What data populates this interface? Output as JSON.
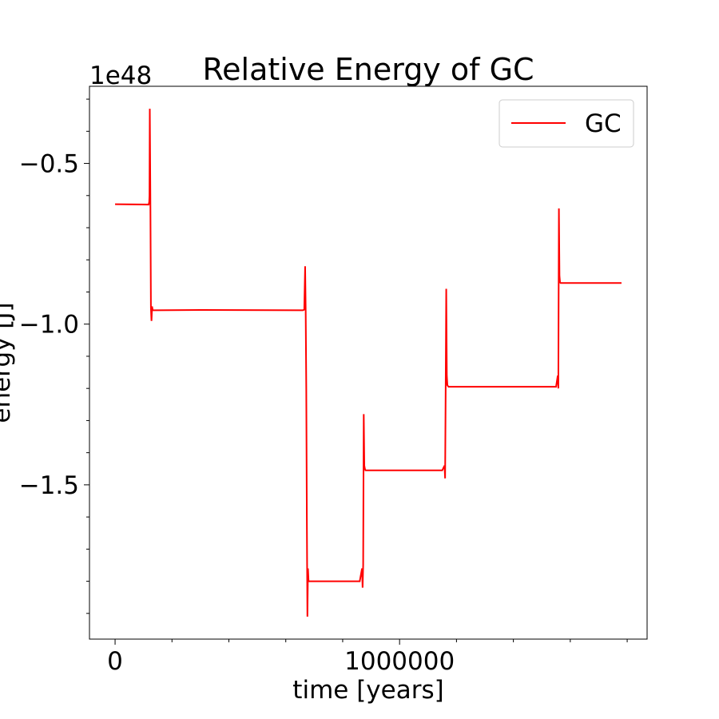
{
  "chart_data": {
    "type": "line",
    "title": "Relative Energy of GC",
    "xlabel": "time [years]",
    "ylabel": "energy [J]",
    "y_multiplier_label": "1e48",
    "xlim": [
      -90000,
      1870000
    ],
    "ylim": [
      -1.98,
      -0.26
    ],
    "x_ticks": [
      0,
      1000000
    ],
    "x_tick_labels": [
      "0",
      "1000000"
    ],
    "x_minor_ticks": [
      200000,
      400000,
      600000,
      800000,
      1200000,
      1400000,
      1600000,
      1800000
    ],
    "y_ticks": [
      -0.5,
      -1.0,
      -1.5
    ],
    "y_tick_labels": [
      "−0.5",
      "−1.0",
      "−1.5"
    ],
    "y_minor_ticks": [
      -0.3,
      -0.4,
      -0.6,
      -0.7,
      -0.8,
      -0.9,
      -1.1,
      -1.2,
      -1.3,
      -1.4,
      -1.6,
      -1.7,
      -1.8,
      -1.9
    ],
    "legend_position": "top-right",
    "grid": false,
    "series": [
      {
        "name": "GC",
        "color": "#ff0000",
        "x": [
          0,
          118000,
          120000,
          121000,
          122000,
          124000,
          126000,
          128000,
          130000,
          132000,
          133000,
          135000,
          140000,
          300000,
          660000,
          665000,
          668000,
          670000,
          672000,
          674000,
          676000,
          678000,
          680000,
          682000,
          684000,
          688000,
          700000,
          860000,
          868000,
          870000,
          872000,
          874000,
          876000,
          878000,
          880000,
          900000,
          1150000,
          1158000,
          1160000,
          1162000,
          1164000,
          1166000,
          1168000,
          1172000,
          1180000,
          1400000,
          1550000,
          1556000,
          1558000,
          1560000,
          1562000,
          1564000,
          1566000,
          1570000,
          1580000,
          1780000
        ],
        "y": [
          -0.627,
          -0.628,
          -0.62,
          -0.6,
          -0.33,
          -0.6,
          -0.95,
          -0.99,
          -0.945,
          -0.955,
          -0.957,
          -0.957,
          -0.957,
          -0.956,
          -0.957,
          -0.955,
          -0.82,
          -0.96,
          -1.2,
          -1.6,
          -1.91,
          -1.76,
          -1.8,
          -1.8,
          -1.8,
          -1.8,
          -1.8,
          -1.8,
          -1.76,
          -1.82,
          -1.75,
          -1.28,
          -1.44,
          -1.45,
          -1.455,
          -1.455,
          -1.455,
          -1.44,
          -1.48,
          -1.2,
          -0.89,
          -1.16,
          -1.19,
          -1.195,
          -1.195,
          -1.195,
          -1.195,
          -1.16,
          -1.2,
          -0.64,
          -0.85,
          -0.87,
          -0.872,
          -0.872,
          -0.872,
          -0.872
        ]
      }
    ]
  }
}
